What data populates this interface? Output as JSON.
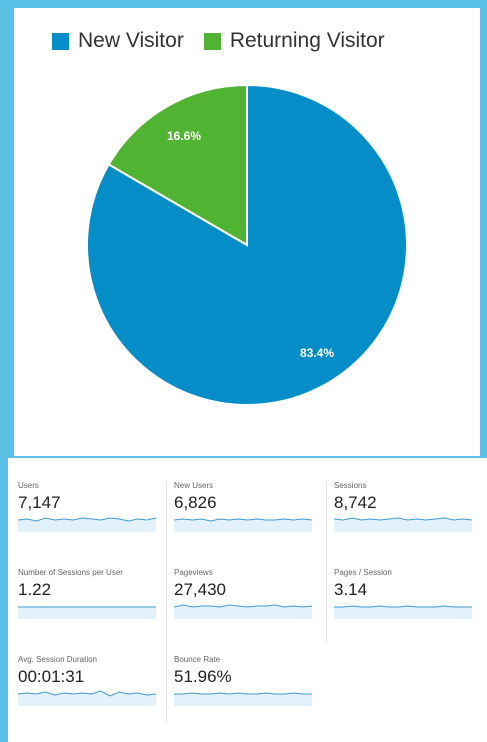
{
  "chart_data": {
    "type": "pie",
    "slices": [
      {
        "label": "New Visitor",
        "value": 83.4,
        "display": "83.4%",
        "color": "#058dc7"
      },
      {
        "label": "Returning Visitor",
        "value": 16.6,
        "display": "16.6%",
        "color": "#50b432"
      }
    ],
    "legend_position": "top-left"
  },
  "metrics": [
    {
      "label": "Users",
      "value": "7,147"
    },
    {
      "label": "New Users",
      "value": "6,826"
    },
    {
      "label": "Sessions",
      "value": "8,742"
    },
    {
      "label": "Number of Sessions per User",
      "value": "1.22"
    },
    {
      "label": "Pageviews",
      "value": "27,430"
    },
    {
      "label": "Pages / Session",
      "value": "3.14"
    },
    {
      "label": "Avg. Session Duration",
      "value": "00:01:31"
    },
    {
      "label": "Bounce Rate",
      "value": "51.96%"
    }
  ],
  "colors": {
    "sparkline_line": "#3f9bd3",
    "sparkline_fill": "#e3f1fa"
  }
}
